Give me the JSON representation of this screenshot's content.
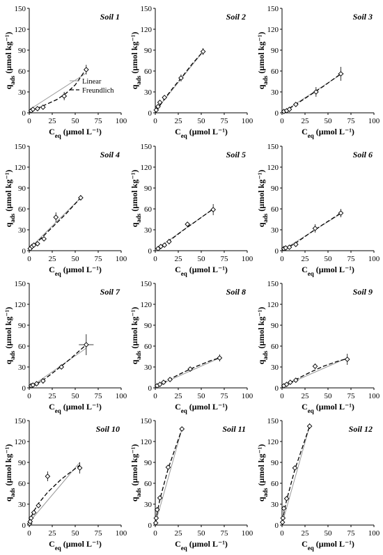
{
  "chart_data": [
    {
      "type": "scatter",
      "title": "Soil 1",
      "xlabel": "C_eq (µmol L⁻¹)",
      "ylabel": "q_ads (µmol kg⁻¹)",
      "xlim": [
        0,
        100
      ],
      "ylim": [
        0,
        150
      ],
      "xticks": [
        0,
        25,
        50,
        75,
        100
      ],
      "yticks": [
        0,
        30,
        60,
        90,
        120,
        150
      ],
      "points": [
        [
          2,
          3
        ],
        [
          4,
          5
        ],
        [
          9,
          6
        ],
        [
          15,
          8
        ],
        [
          38,
          24
        ],
        [
          62,
          62
        ]
      ],
      "err": [
        [
          0,
          0
        ],
        [
          0,
          0
        ],
        [
          0,
          0
        ],
        [
          2,
          2
        ],
        [
          3,
          6
        ],
        [
          2,
          7
        ]
      ],
      "linear_fit": {
        "x": [
          2,
          62
        ],
        "y": [
          6,
          57
        ]
      },
      "freundlich_fit": {
        "x": [
          2,
          10,
          20,
          30,
          40,
          50,
          62
        ],
        "y": [
          1.8,
          7,
          13,
          19,
          28,
          40,
          63
        ]
      },
      "legend": {
        "linear": "Linear",
        "freundlich": "Freundlich"
      }
    },
    {
      "type": "scatter",
      "title": "Soil 2",
      "xlabel": "C_eq (µmol L⁻¹)",
      "ylabel": "q_ads (µmol kg⁻¹)",
      "xlim": [
        0,
        100
      ],
      "ylim": [
        0,
        150
      ],
      "xticks": [
        0,
        25,
        50,
        75,
        100
      ],
      "yticks": [
        0,
        30,
        60,
        90,
        120,
        150
      ],
      "points": [
        [
          1,
          4
        ],
        [
          3,
          9
        ],
        [
          5,
          15
        ],
        [
          10,
          22
        ],
        [
          28,
          50
        ],
        [
          52,
          88
        ]
      ],
      "err": [
        [
          0,
          0
        ],
        [
          0,
          0
        ],
        [
          0,
          0
        ],
        [
          0,
          0
        ],
        [
          1,
          5
        ],
        [
          1,
          5
        ]
      ],
      "linear_fit": {
        "x": [
          1,
          52
        ],
        "y": [
          4,
          88
        ]
      },
      "freundlich_fit": {
        "x": [
          1,
          10,
          20,
          30,
          40,
          52
        ],
        "y": [
          3,
          20,
          37,
          53,
          70,
          88
        ]
      }
    },
    {
      "type": "scatter",
      "title": "Soil 3",
      "xlabel": "C_eq (µmol L⁻¹)",
      "ylabel": "q_ads (µmol kg⁻¹)",
      "xlim": [
        0,
        100
      ],
      "ylim": [
        0,
        150
      ],
      "xticks": [
        0,
        25,
        50,
        75,
        100
      ],
      "yticks": [
        0,
        30,
        60,
        90,
        120,
        150
      ],
      "points": [
        [
          2,
          2
        ],
        [
          5,
          3
        ],
        [
          8,
          5
        ],
        [
          15,
          12
        ],
        [
          37,
          30
        ],
        [
          64,
          56
        ]
      ],
      "err": [
        [
          0,
          0
        ],
        [
          0,
          0
        ],
        [
          0,
          0
        ],
        [
          0,
          0
        ],
        [
          2,
          7
        ],
        [
          3,
          10
        ]
      ],
      "linear_fit": {
        "x": [
          2,
          64
        ],
        "y": [
          2,
          55
        ]
      },
      "freundlich_fit": {
        "x": [
          2,
          15,
          30,
          45,
          64
        ],
        "y": [
          1.5,
          12,
          25,
          38,
          56
        ]
      }
    },
    {
      "type": "scatter",
      "title": "Soil 4",
      "xlabel": "C_eq (µmol L⁻¹)",
      "ylabel": "q_ads (µmol kg⁻¹)",
      "xlim": [
        0,
        100
      ],
      "ylim": [
        0,
        150
      ],
      "xticks": [
        0,
        25,
        50,
        75,
        100
      ],
      "yticks": [
        0,
        30,
        60,
        90,
        120,
        150
      ],
      "points": [
        [
          1,
          3
        ],
        [
          3,
          6
        ],
        [
          5,
          8
        ],
        [
          9,
          10
        ],
        [
          16,
          17
        ],
        [
          29,
          48
        ],
        [
          56,
          76
        ]
      ],
      "err": [
        [
          0,
          0
        ],
        [
          0,
          0
        ],
        [
          0,
          0
        ],
        [
          0,
          0
        ],
        [
          0,
          3
        ],
        [
          1,
          7
        ],
        [
          1,
          4
        ]
      ],
      "linear_fit": {
        "x": [
          1,
          56
        ],
        "y": [
          4,
          76
        ]
      },
      "freundlich_fit": {
        "x": [
          1,
          10,
          20,
          30,
          40,
          56
        ],
        "y": [
          2,
          14,
          27,
          40,
          53,
          76
        ]
      }
    },
    {
      "type": "scatter",
      "title": "Soil 5",
      "xlabel": "C_eq (µmol L⁻¹)",
      "ylabel": "q_ads (µmol kg⁻¹)",
      "xlim": [
        0,
        100
      ],
      "ylim": [
        0,
        150
      ],
      "xticks": [
        0,
        25,
        50,
        75,
        100
      ],
      "yticks": [
        0,
        30,
        60,
        90,
        120,
        150
      ],
      "points": [
        [
          3,
          3
        ],
        [
          6,
          6
        ],
        [
          10,
          8
        ],
        [
          15,
          13
        ],
        [
          35,
          38
        ],
        [
          63,
          59
        ]
      ],
      "err": [
        [
          0,
          0
        ],
        [
          0,
          0
        ],
        [
          0,
          0
        ],
        [
          1,
          4
        ],
        [
          1,
          3
        ],
        [
          2,
          8
        ]
      ],
      "linear_fit": {
        "x": [
          2,
          63
        ],
        "y": [
          3,
          60
        ]
      },
      "freundlich_fit": {
        "x": [
          2,
          15,
          30,
          45,
          63
        ],
        "y": [
          2,
          14,
          29,
          43,
          60
        ]
      }
    },
    {
      "type": "scatter",
      "title": "Soil 6",
      "xlabel": "C_eq (µmol L⁻¹)",
      "ylabel": "q_ads (µmol kg⁻¹)",
      "xlim": [
        0,
        100
      ],
      "ylim": [
        0,
        150
      ],
      "xticks": [
        0,
        25,
        50,
        75,
        100
      ],
      "yticks": [
        0,
        30,
        60,
        90,
        120,
        150
      ],
      "points": [
        [
          2,
          3
        ],
        [
          4,
          4
        ],
        [
          8,
          5
        ],
        [
          15,
          9
        ],
        [
          36,
          32
        ],
        [
          64,
          54
        ]
      ],
      "err": [
        [
          0,
          0
        ],
        [
          0,
          0
        ],
        [
          0,
          0
        ],
        [
          0,
          2
        ],
        [
          2,
          6
        ],
        [
          2,
          6
        ]
      ],
      "linear_fit": {
        "x": [
          2,
          64
        ],
        "y": [
          2,
          53
        ]
      },
      "freundlich_fit": {
        "x": [
          2,
          15,
          30,
          45,
          64
        ],
        "y": [
          1.5,
          11,
          25,
          38,
          54
        ]
      }
    },
    {
      "type": "scatter",
      "title": "Soil 7",
      "xlabel": "C_eq (µmol L⁻¹)",
      "ylabel": "q_ads (µmol kg⁻¹)",
      "xlim": [
        0,
        100
      ],
      "ylim": [
        0,
        150
      ],
      "xticks": [
        0,
        25,
        50,
        75,
        100
      ],
      "yticks": [
        0,
        30,
        60,
        90,
        120,
        150
      ],
      "points": [
        [
          2,
          3
        ],
        [
          4,
          4
        ],
        [
          8,
          6
        ],
        [
          15,
          10
        ],
        [
          35,
          30
        ],
        [
          62,
          62
        ]
      ],
      "err": [
        [
          0,
          0
        ],
        [
          0,
          0
        ],
        [
          0,
          0
        ],
        [
          1,
          4
        ],
        [
          1,
          2
        ],
        [
          8,
          15
        ]
      ],
      "linear_fit": {
        "x": [
          2,
          62
        ],
        "y": [
          2,
          57
        ]
      },
      "freundlich_fit": {
        "x": [
          2,
          15,
          30,
          45,
          62
        ],
        "y": [
          1.5,
          11,
          26,
          42,
          62
        ]
      }
    },
    {
      "type": "scatter",
      "title": "Soil 8",
      "xlabel": "C_eq (µmol L⁻¹)",
      "ylabel": "q_ads (µmol kg⁻¹)",
      "xlim": [
        0,
        100
      ],
      "ylim": [
        0,
        150
      ],
      "xticks": [
        0,
        25,
        50,
        75,
        100
      ],
      "yticks": [
        0,
        30,
        60,
        90,
        120,
        150
      ],
      "points": [
        [
          2,
          3
        ],
        [
          5,
          5
        ],
        [
          9,
          8
        ],
        [
          16,
          12
        ],
        [
          38,
          27
        ],
        [
          70,
          43
        ]
      ],
      "err": [
        [
          0,
          0
        ],
        [
          0,
          0
        ],
        [
          0,
          0
        ],
        [
          0,
          0
        ],
        [
          1,
          2
        ],
        [
          2,
          5
        ]
      ],
      "linear_fit": {
        "x": [
          2,
          70
        ],
        "y": [
          3,
          43
        ]
      },
      "freundlich_fit": {
        "x": [
          2,
          15,
          30,
          45,
          60,
          70
        ],
        "y": [
          2.5,
          12,
          22,
          31,
          39,
          43
        ]
      }
    },
    {
      "type": "scatter",
      "title": "Soil 9",
      "xlabel": "C_eq (µmol L⁻¹)",
      "ylabel": "q_ads (µmol kg⁻¹)",
      "xlim": [
        0,
        100
      ],
      "ylim": [
        0,
        150
      ],
      "xticks": [
        0,
        25,
        50,
        75,
        100
      ],
      "yticks": [
        0,
        30,
        60,
        90,
        120,
        150
      ],
      "points": [
        [
          2,
          3
        ],
        [
          5,
          5
        ],
        [
          9,
          8
        ],
        [
          15,
          11
        ],
        [
          36,
          31
        ],
        [
          71,
          41
        ]
      ],
      "err": [
        [
          0,
          0
        ],
        [
          0,
          0
        ],
        [
          0,
          0
        ],
        [
          0,
          0
        ],
        [
          2,
          4
        ],
        [
          2,
          8
        ]
      ],
      "linear_fit": {
        "x": [
          2,
          71
        ],
        "y": [
          3,
          43
        ]
      },
      "freundlich_fit": {
        "x": [
          2,
          15,
          30,
          45,
          60,
          71
        ],
        "y": [
          2.5,
          12,
          22,
          31,
          38,
          42
        ]
      }
    },
    {
      "type": "scatter",
      "title": "Soil 10",
      "xlabel": "C_eq (µmol L⁻¹)",
      "ylabel": "q_ads (µmol kg⁻¹)",
      "xlim": [
        0,
        100
      ],
      "ylim": [
        0,
        150
      ],
      "xticks": [
        0,
        25,
        50,
        75,
        100
      ],
      "yticks": [
        0,
        30,
        60,
        90,
        120,
        150
      ],
      "points": [
        [
          0.5,
          2
        ],
        [
          1,
          5
        ],
        [
          2,
          10
        ],
        [
          5,
          18
        ],
        [
          10,
          28
        ],
        [
          20,
          70
        ],
        [
          55,
          82
        ]
      ],
      "err": [
        [
          0,
          0
        ],
        [
          0,
          0
        ],
        [
          0,
          0
        ],
        [
          0,
          0
        ],
        [
          0,
          0
        ],
        [
          1,
          7
        ],
        [
          1,
          8
        ]
      ],
      "linear_fit": {
        "x": [
          0.5,
          55
        ],
        "y": [
          5,
          90
        ]
      },
      "freundlich_fit": {
        "x": [
          0.5,
          2,
          5,
          10,
          20,
          35,
          55
        ],
        "y": [
          3,
          11,
          20,
          31,
          47,
          66,
          86
        ]
      }
    },
    {
      "type": "scatter",
      "title": "Soil 11",
      "xlabel": "C_eq (µmol L⁻¹)",
      "ylabel": "q_ads (µmol kg⁻¹)",
      "xlim": [
        0,
        100
      ],
      "ylim": [
        0,
        150
      ],
      "xticks": [
        0,
        25,
        50,
        75,
        100
      ],
      "yticks": [
        0,
        30,
        60,
        90,
        120,
        150
      ],
      "points": [
        [
          0.5,
          3
        ],
        [
          1,
          10
        ],
        [
          2,
          22
        ],
        [
          5,
          39
        ],
        [
          14,
          83
        ],
        [
          29,
          138
        ]
      ],
      "err": [
        [
          0,
          0
        ],
        [
          0,
          0
        ],
        [
          0,
          0
        ],
        [
          0,
          0
        ],
        [
          0,
          0
        ],
        [
          0,
          3
        ]
      ],
      "linear_fit": {
        "x": [
          0.5,
          29
        ],
        "y": [
          4,
          138
        ]
      },
      "freundlich_fit": {
        "x": [
          0.5,
          2,
          5,
          14,
          29
        ],
        "y": [
          5,
          17,
          37,
          81,
          138
        ]
      }
    },
    {
      "type": "scatter",
      "title": "Soil 12",
      "xlabel": "C_eq (µmol L⁻¹)",
      "ylabel": "q_ads (µmol kg⁻¹)",
      "xlim": [
        0,
        100
      ],
      "ylim": [
        0,
        150
      ],
      "xticks": [
        0,
        25,
        50,
        75,
        100
      ],
      "yticks": [
        0,
        30,
        60,
        90,
        120,
        150
      ],
      "points": [
        [
          0.5,
          4
        ],
        [
          1,
          10
        ],
        [
          2,
          24
        ],
        [
          5,
          38
        ],
        [
          14,
          82
        ],
        [
          30,
          142
        ]
      ],
      "err": [
        [
          0,
          0
        ],
        [
          0,
          0
        ],
        [
          0,
          0
        ],
        [
          0,
          0
        ],
        [
          0,
          0
        ],
        [
          0,
          4
        ]
      ],
      "linear_fit": {
        "x": [
          0.5,
          30
        ],
        "y": [
          4,
          142
        ]
      },
      "freundlich_fit": {
        "x": [
          0.5,
          2,
          5,
          14,
          30
        ],
        "y": [
          5,
          17,
          36,
          80,
          142
        ]
      }
    }
  ]
}
